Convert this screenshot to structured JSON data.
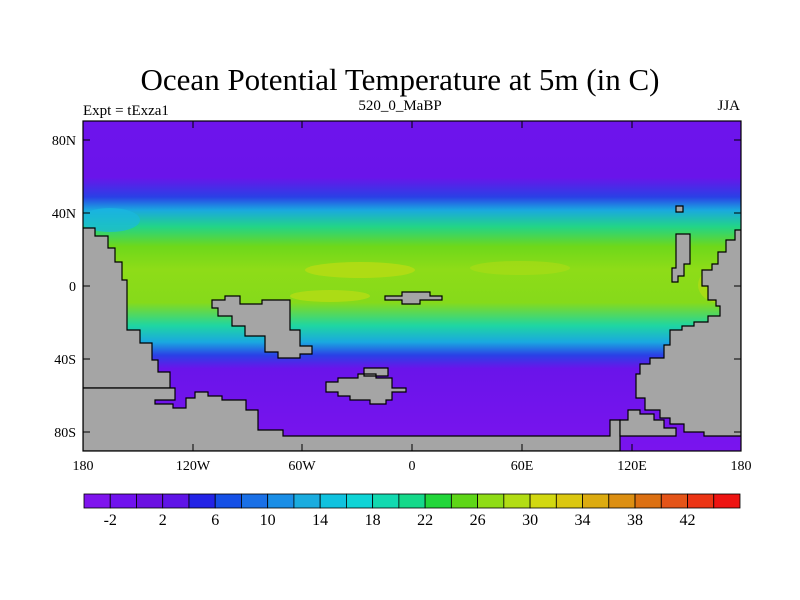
{
  "title": "Ocean Potential Temperature at 5m (in C)",
  "left_string": "Expt = tExza1",
  "center_string": "520_0_MaBP",
  "right_string": "JJA",
  "map": {
    "lat_ticks": [
      "80N",
      "40N",
      "0",
      "40S",
      "80S"
    ],
    "lon_ticks": [
      "180",
      "120W",
      "60W",
      "0",
      "60E",
      "120E",
      "180"
    ],
    "land_color": "#a5a5a5"
  },
  "colorbar": {
    "labels": [
      "-2",
      "2",
      "6",
      "10",
      "14",
      "18",
      "22",
      "26",
      "30",
      "34",
      "38",
      "42"
    ],
    "colors": [
      "#7f14ee",
      "#7012ee",
      "#6b11e2",
      "#5f14e7",
      "#2323e6",
      "#1550e6",
      "#1a70e6",
      "#1a8ee6",
      "#1aacdf",
      "#10c2df",
      "#0fd4d6",
      "#12d9b0",
      "#15d98a",
      "#22d63a",
      "#5ed617",
      "#8fdc16",
      "#b2dd14",
      "#d2d811",
      "#dbc710",
      "#dcab10",
      "#dc8f12",
      "#dc7012",
      "#e45418",
      "#ec3414",
      "#ee1412"
    ]
  }
}
